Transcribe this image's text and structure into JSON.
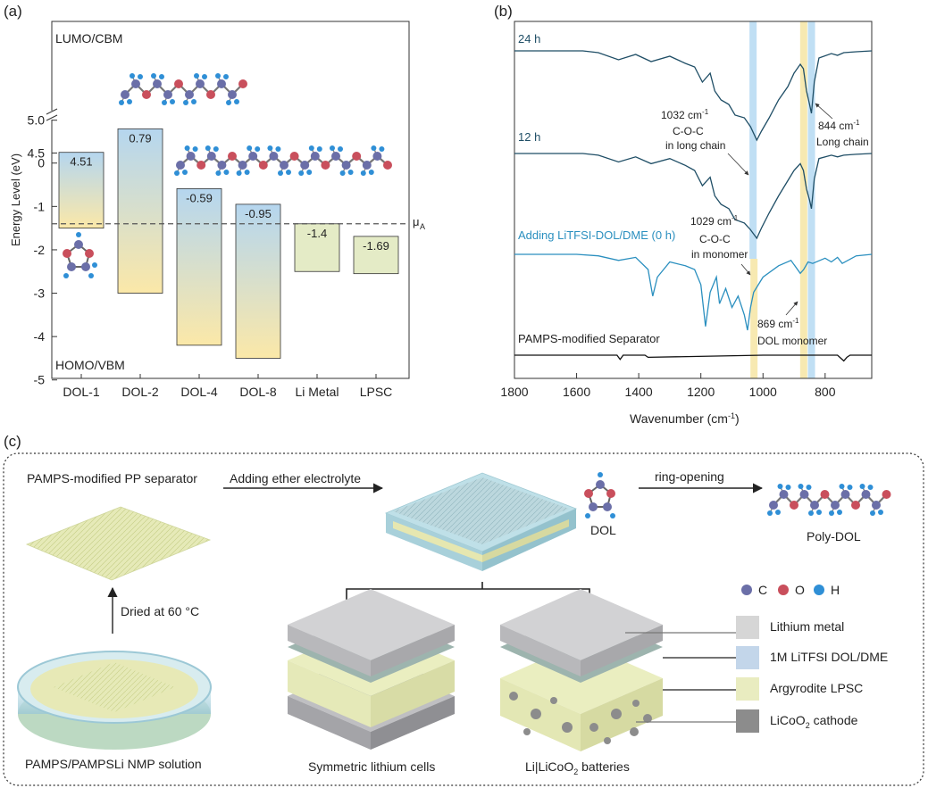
{
  "figure": {
    "panel_a": {
      "label": "(a)",
      "top_label": "LUMO/CBM",
      "bottom_label": "HOMO/VBM",
      "ylabel": "Energy Level (eV)",
      "mu_label": "μ",
      "mu_sub": "A",
      "mu_value": -1.4,
      "upper_ticks": [
        "5.0",
        "4.5"
      ],
      "lower_ticks": [
        "0",
        "-1",
        "-2",
        "-3",
        "-4",
        "-5"
      ]
    },
    "panel_b": {
      "label": "(b)",
      "xlabel": "Wavenumber (cm",
      "xlabel_sup": "-1",
      "xlabel_end": ")",
      "x_ticks": [
        "1800",
        "1600",
        "1400",
        "1200",
        "1000",
        "800"
      ],
      "traces": [
        {
          "name": "24 h",
          "color": "#1f4e66"
        },
        {
          "name": "12 h",
          "color": "#1f4e66"
        },
        {
          "name": "Adding LiTFSI-DOL/DME (0 h)",
          "color": "#2a8fbf"
        },
        {
          "name": "PAMPS-modified Separator",
          "color": "#111111"
        }
      ],
      "annotations": {
        "a1032_value": "1032 cm",
        "a1032_sup": "-1",
        "a1032_l2": "C-O-C",
        "a1032_l3": "in long chain",
        "a844_value": "844 cm",
        "a844_sup": "-1",
        "a844_l2": "Long chain",
        "a1029_value": "1029 cm",
        "a1029_sup": "-1",
        "a1029_l2": "C-O-C",
        "a1029_l3": "in monomer",
        "a869_value": "869 cm",
        "a869_sup": "-1",
        "a869_l2": "DOL monomer"
      },
      "band_colors": {
        "blue": "#b9dcf3",
        "yellow": "#f6e7a9"
      }
    },
    "panel_c": {
      "label": "(c)",
      "separator_title": "PAMPS-modified PP separator",
      "arrow_electrolyte": "Adding ether electrolyte",
      "dol_label": "DOL",
      "ring_opening": "ring-opening",
      "poly_dol_label": "Poly-DOL",
      "dried_label": "Dried at 60 °C",
      "solution_label": "PAMPS/PAMPSLi NMP solution",
      "cell1_label": "Symmetric lithium cells",
      "cell2_label": "Li|LiCoO",
      "cell2_sub": "2",
      "cell2_end": " batteries",
      "atoms": [
        {
          "symbol": "C",
          "color": "#6b6fa8"
        },
        {
          "symbol": "O",
          "color": "#c94f5c"
        },
        {
          "symbol": "H",
          "color": "#2f8fd6"
        }
      ],
      "legend": [
        {
          "label": "Lithium metal",
          "color": "#d6d6d6"
        },
        {
          "label": "1M LiTFSI DOL/DME",
          "color": "#c3d6ea"
        },
        {
          "label": "Argyrodite LPSC",
          "color": "#e9ecc0"
        },
        {
          "label": "LiCoO",
          "sub": "2",
          "end": " cathode",
          "color": "#8c8c8c"
        }
      ]
    }
  },
  "chart_data": [
    {
      "type": "bar",
      "title": "",
      "ylabel": "Energy Level (eV)",
      "categories": [
        "DOL-1",
        "DOL-2",
        "DOL-4",
        "DOL-8",
        "Li Metal",
        "LPSC"
      ],
      "series": [
        {
          "name": "LUMO",
          "values": [
            4.51,
            0.79,
            -0.59,
            -0.95,
            -1.4,
            -1.69
          ]
        },
        {
          "name": "HOMO",
          "values": [
            -1.5,
            -3.0,
            -4.2,
            -4.5,
            -2.5,
            -2.55
          ]
        }
      ],
      "value_labels": [
        "4.51",
        "0.79",
        "-0.59",
        "-0.95",
        "-1.4",
        "-1.69"
      ],
      "ylim": [
        -5,
        5.2
      ],
      "axis_break": [
        0.9,
        4.2
      ],
      "reference_line": {
        "label": "μA",
        "value": -1.4
      }
    },
    {
      "type": "line",
      "title": "",
      "xlabel": "Wavenumber (cm-1)",
      "xlim": [
        1800,
        650
      ],
      "x_reversed": true,
      "series": [
        {
          "name": "24 h",
          "x": [
            1800,
            1580,
            1530,
            1465,
            1410,
            1360,
            1300,
            1250,
            1220,
            1195,
            1170,
            1155,
            1135,
            1110,
            1090,
            1060,
            1040,
            1020,
            1005,
            980,
            950,
            920,
            900,
            880,
            870,
            860,
            850,
            844,
            835,
            820,
            780,
            760,
            740,
            700,
            650
          ],
          "y": [
            0,
            0,
            0.02,
            0.1,
            0.04,
            0.12,
            0.06,
            0.14,
            0.18,
            0.35,
            0.25,
            0.45,
            0.55,
            0.6,
            0.72,
            0.75,
            0.85,
            1.0,
            0.9,
            0.75,
            0.55,
            0.4,
            0.25,
            0.15,
            0.2,
            0.45,
            0.6,
            0.7,
            0.35,
            0.08,
            0.03,
            0.05,
            0.02,
            0.01,
            0
          ]
        },
        {
          "name": "12 h",
          "x": [
            1800,
            1580,
            1530,
            1465,
            1410,
            1360,
            1300,
            1250,
            1220,
            1195,
            1170,
            1155,
            1135,
            1110,
            1090,
            1060,
            1040,
            1020,
            1005,
            980,
            950,
            920,
            900,
            880,
            870,
            860,
            850,
            844,
            835,
            820,
            780,
            760,
            740,
            700,
            650
          ],
          "y": [
            0,
            0,
            0.02,
            0.1,
            0.04,
            0.12,
            0.06,
            0.14,
            0.2,
            0.38,
            0.28,
            0.5,
            0.6,
            0.65,
            0.78,
            0.82,
            0.9,
            1.0,
            0.88,
            0.7,
            0.5,
            0.32,
            0.2,
            0.12,
            0.2,
            0.42,
            0.55,
            0.65,
            0.3,
            0.06,
            0.02,
            0.04,
            0.02,
            0.01,
            0
          ]
        },
        {
          "name": "Adding LiTFSI-DOL/DME (0 h)",
          "x": [
            1800,
            1600,
            1530,
            1465,
            1410,
            1370,
            1355,
            1340,
            1300,
            1250,
            1220,
            1200,
            1185,
            1170,
            1150,
            1140,
            1120,
            1100,
            1080,
            1060,
            1050,
            1040,
            1030,
            1000,
            950,
            910,
            880,
            869,
            855,
            840,
            800,
            780,
            760,
            745,
            700,
            650
          ],
          "y": [
            0,
            0,
            0.02,
            0.08,
            0.04,
            0.2,
            0.55,
            0.3,
            0.1,
            0.15,
            0.2,
            0.4,
            0.95,
            0.5,
            0.3,
            0.65,
            0.45,
            0.7,
            0.55,
            0.8,
            1.0,
            0.7,
            0.5,
            0.3,
            0.15,
            0.08,
            0.25,
            0.2,
            0.1,
            0.12,
            0.05,
            0.1,
            0.04,
            0.12,
            0.02,
            0
          ]
        },
        {
          "name": "PAMPS-modified Separator",
          "x": [
            1800,
            1470,
            1460,
            1450,
            1380,
            1370,
            1000,
            760,
            740,
            730,
            720,
            650
          ],
          "y": [
            0,
            0,
            0.6,
            0,
            0,
            0.3,
            0,
            0,
            0.8,
            0.3,
            0,
            0
          ]
        }
      ],
      "highlight_bands": [
        {
          "x": 1032,
          "color": "blue"
        },
        {
          "x": 1029,
          "color": "yellow"
        },
        {
          "x": 869,
          "color": "yellow"
        },
        {
          "x": 844,
          "color": "blue"
        }
      ]
    }
  ]
}
